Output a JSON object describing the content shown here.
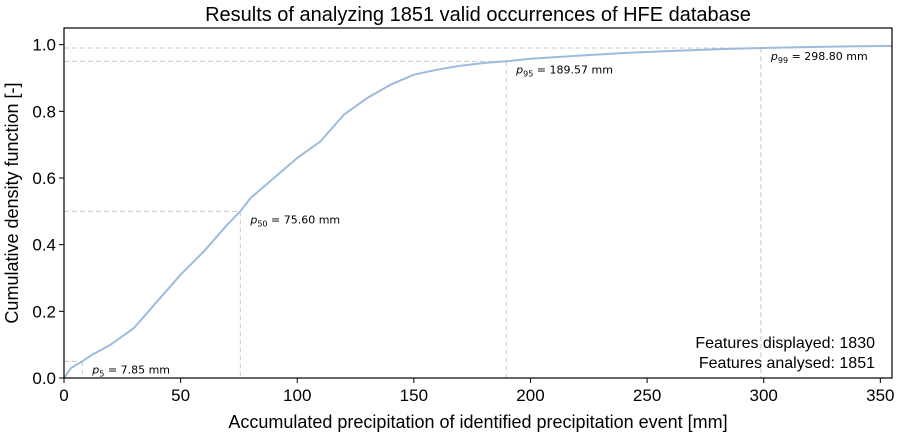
{
  "chart_data": {
    "type": "line",
    "title": "Results of analyzing 1851 valid occurrences of HFE database",
    "xlabel": "Accumulated precipitation of identified precipitation event [mm]",
    "ylabel": "Cumulative density function [-]",
    "xlim": [
      0,
      355
    ],
    "ylim": [
      0,
      1.05
    ],
    "xticks": [
      "0",
      "50",
      "100",
      "150",
      "200",
      "250",
      "300",
      "350"
    ],
    "yticks": [
      "0.0",
      "0.2",
      "0.4",
      "0.6",
      "0.8",
      "1.0"
    ],
    "xtick_values": [
      0,
      50,
      100,
      150,
      200,
      250,
      300,
      350
    ],
    "ytick_values": [
      0,
      0.2,
      0.4,
      0.6,
      0.8,
      1.0
    ],
    "grid": false,
    "line_color": "#9dbbdd",
    "reference_line_color": "#c8c8c8",
    "series": [
      {
        "x": [
          0,
          3,
          7.85,
          12,
          20,
          30,
          40,
          50,
          60,
          70,
          75.6,
          80,
          90,
          100,
          110,
          115,
          120,
          130,
          140,
          150,
          160,
          170,
          180,
          189.57,
          200,
          220,
          240,
          260,
          280,
          298.8,
          320,
          340,
          355
        ],
        "y": [
          0,
          0.03,
          0.05,
          0.07,
          0.1,
          0.15,
          0.23,
          0.31,
          0.38,
          0.46,
          0.5,
          0.54,
          0.6,
          0.66,
          0.71,
          0.75,
          0.79,
          0.84,
          0.88,
          0.91,
          0.925,
          0.937,
          0.945,
          0.95,
          0.958,
          0.967,
          0.975,
          0.981,
          0.986,
          0.99,
          0.993,
          0.995,
          0.996
        ]
      }
    ],
    "percentiles": [
      {
        "p": 0.05,
        "x": 7.85,
        "sub": "5",
        "text": "= 7.85 mm"
      },
      {
        "p": 0.5,
        "x": 75.6,
        "sub": "50",
        "text": "= 75.60 mm"
      },
      {
        "p": 0.95,
        "x": 189.57,
        "sub": "95",
        "text": "= 189.57 mm"
      },
      {
        "p": 0.99,
        "x": 298.8,
        "sub": "99",
        "text": "= 298.80 mm"
      }
    ],
    "annotations": {
      "features_displayed": "Features displayed: 1830",
      "features_analysed": "Features analysed: 1851"
    }
  }
}
